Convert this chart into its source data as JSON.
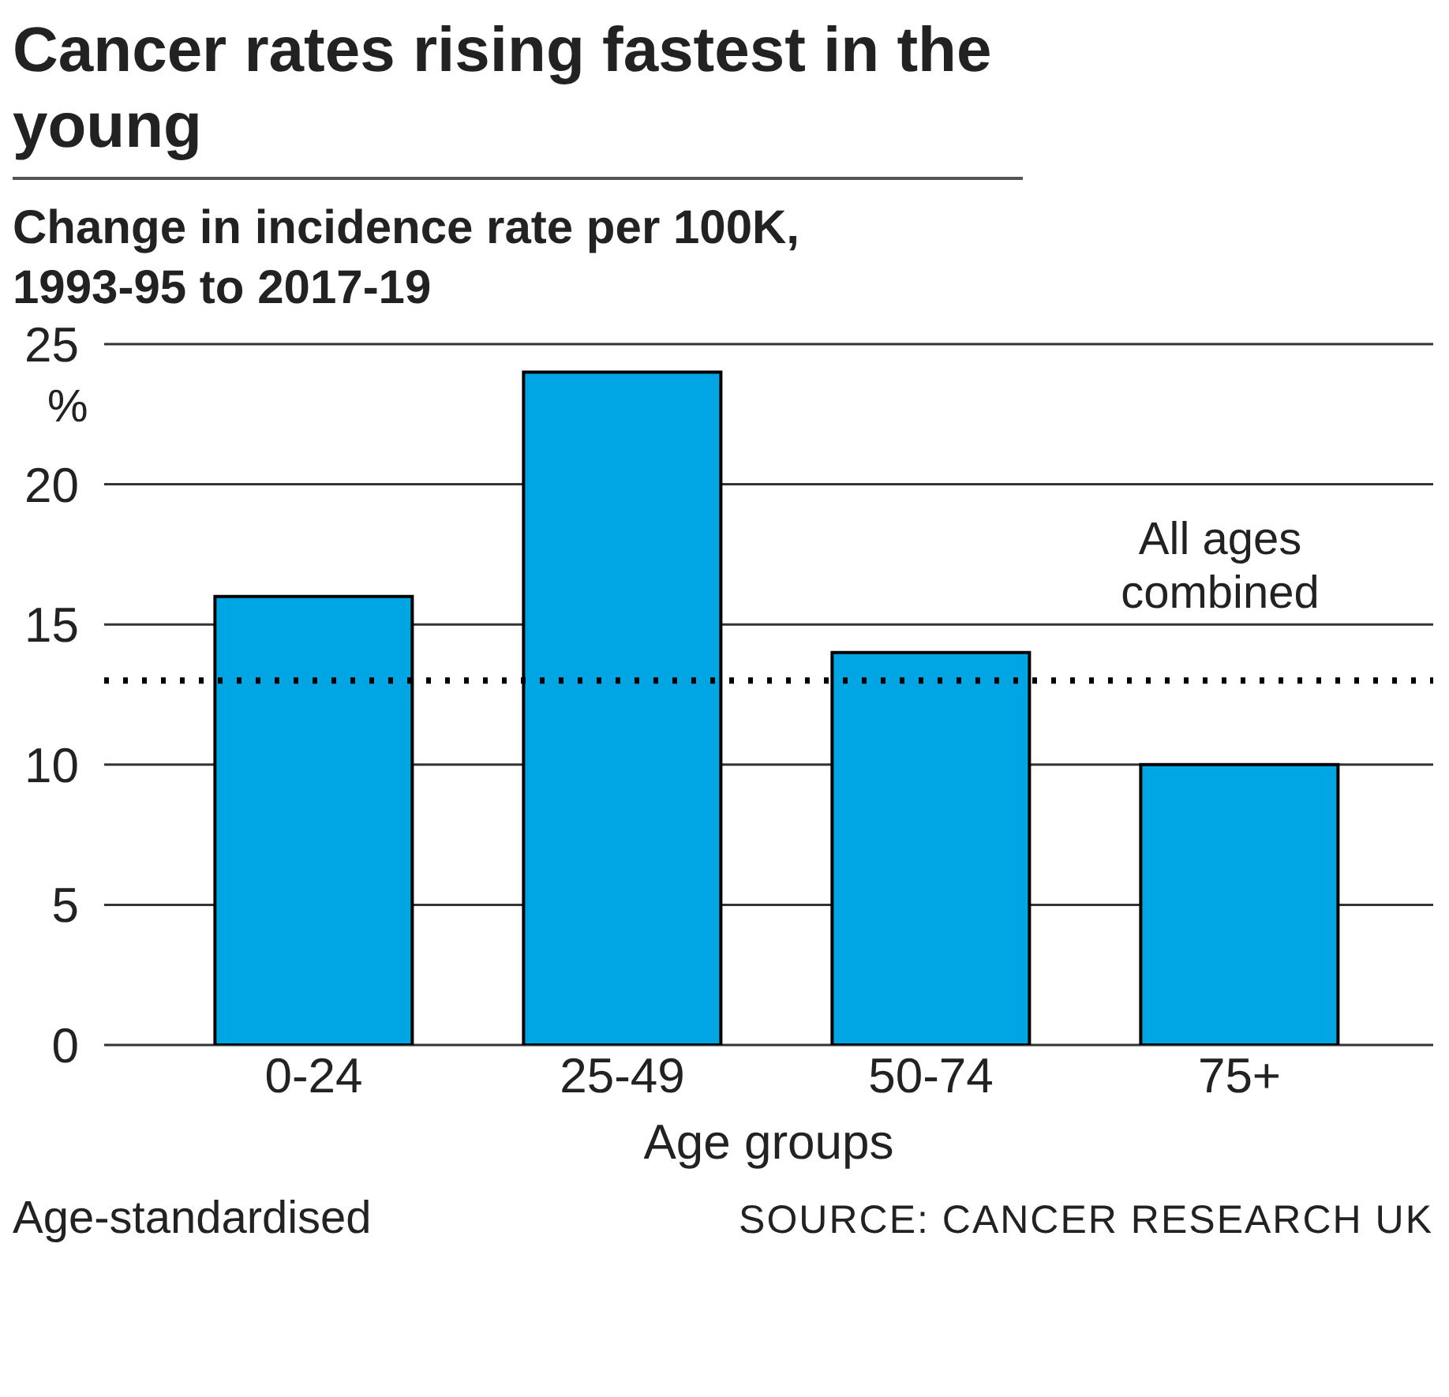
{
  "chart_data": {
    "type": "bar",
    "title": "Cancer rates rising fastest in the young",
    "subtitle": "Change in incidence rate per 100K, 1993-95 to 2017-19",
    "ylabel": "%",
    "xlabel": "Age groups",
    "categories": [
      "0-24",
      "25-49",
      "50-74",
      "75+"
    ],
    "values": [
      16,
      24,
      14,
      10
    ],
    "color": "#00a6e4",
    "ylim": [
      0,
      25
    ],
    "yticks": [
      0,
      5,
      10,
      15,
      20,
      25
    ],
    "grid": "y",
    "ref_lines": [
      {
        "axis": "y",
        "value": 13,
        "label": "All ages combined",
        "line_style": "dotted",
        "color": "#000000"
      }
    ],
    "annotations": [
      "Age-standardised",
      "SOURCE: CANCER RESEARCH UK"
    ]
  }
}
